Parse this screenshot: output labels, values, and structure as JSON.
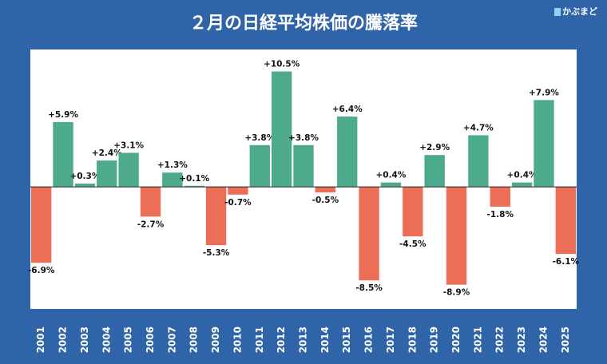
{
  "brand": "かぶまど",
  "chart_data": {
    "type": "bar",
    "title": "２月の日経平均株価の騰落率",
    "categories": [
      "2001",
      "2002",
      "2003",
      "2004",
      "2005",
      "2006",
      "2007",
      "2008",
      "2009",
      "2010",
      "2011",
      "2012",
      "2013",
      "2014",
      "2015",
      "2016",
      "2017",
      "2018",
      "2019",
      "2020",
      "2021",
      "2022",
      "2023",
      "2024",
      "2025"
    ],
    "values": [
      -6.9,
      5.9,
      0.3,
      2.4,
      3.1,
      -2.7,
      1.3,
      0.1,
      -5.3,
      -0.7,
      3.8,
      10.5,
      3.8,
      -0.5,
      6.4,
      -8.5,
      0.4,
      -4.5,
      2.9,
      -8.9,
      4.7,
      -1.8,
      0.4,
      7.9,
      -6.1
    ],
    "value_labels": [
      "-6.9%",
      "+5.9%",
      "+0.3%",
      "+2.4%",
      "+3.1%",
      "-2.7%",
      "+1.3%",
      "+0.1%",
      "-5.3%",
      "-0.7%",
      "+3.8%",
      "+10.5%",
      "+3.8%",
      "-0.5%",
      "+6.4%",
      "-8.5%",
      "+0.4%",
      "-4.5%",
      "+2.9%",
      "-8.9%",
      "+4.7%",
      "-1.8%",
      "+0.4%",
      "+7.9%",
      "-6.1%"
    ],
    "positive_color": "#4daa8d",
    "negative_color": "#ec6e56",
    "ylim": [
      -11.1,
      12.5
    ]
  }
}
